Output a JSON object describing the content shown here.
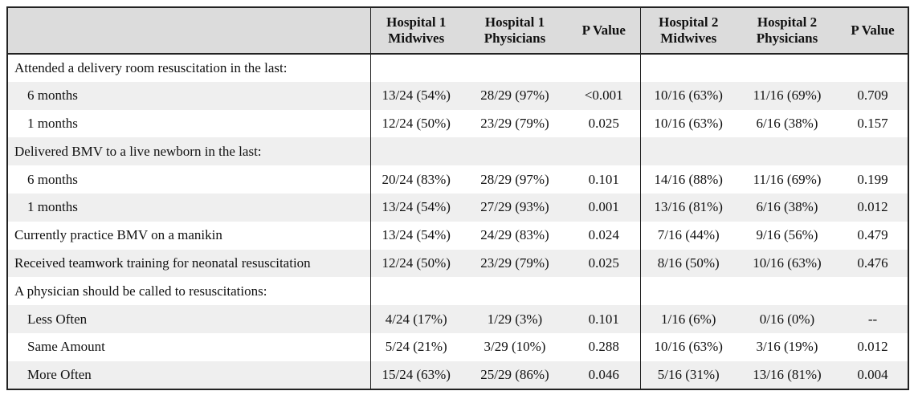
{
  "header": {
    "corner": "",
    "h1_line1": "Hospital 1",
    "h1_line2": "Midwives",
    "p1_line1": "Hospital 1",
    "p1_line2": "Physicians",
    "pv1": "P Value",
    "h2_line1": "Hospital 2",
    "h2_line2": "Midwives",
    "p2_line1": "Hospital 2",
    "p2_line2": "Physicians",
    "pv2": "P Value"
  },
  "rows": [
    {
      "label": "Attended a delivery room resuscitation in the last:",
      "indent": false,
      "cells": [
        "",
        "",
        "",
        "",
        "",
        ""
      ]
    },
    {
      "label": "6 months",
      "indent": true,
      "cells": [
        "13/24 (54%)",
        "28/29 (97%)",
        "<0.001",
        "10/16 (63%)",
        "11/16 (69%)",
        "0.709"
      ]
    },
    {
      "label": "1 months",
      "indent": true,
      "cells": [
        "12/24 (50%)",
        "23/29 (79%)",
        "0.025",
        "10/16 (63%)",
        "6/16 (38%)",
        "0.157"
      ]
    },
    {
      "label": "Delivered BMV to a live newborn in the last:",
      "indent": false,
      "cells": [
        "",
        "",
        "",
        "",
        "",
        ""
      ]
    },
    {
      "label": "6 months",
      "indent": true,
      "cells": [
        "20/24 (83%)",
        "28/29 (97%)",
        "0.101",
        "14/16 (88%)",
        "11/16 (69%)",
        "0.199"
      ]
    },
    {
      "label": "1 months",
      "indent": true,
      "cells": [
        "13/24 (54%)",
        "27/29 (93%)",
        "0.001",
        "13/16 (81%)",
        "6/16 (38%)",
        "0.012"
      ]
    },
    {
      "label": "Currently practice BMV on a manikin",
      "indent": false,
      "cells": [
        "13/24 (54%)",
        "24/29 (83%)",
        "0.024",
        "7/16 (44%)",
        "9/16 (56%)",
        "0.479"
      ]
    },
    {
      "label": "Received teamwork training for neonatal resuscitation",
      "indent": false,
      "cells": [
        "12/24 (50%)",
        "23/29 (79%)",
        "0.025",
        "8/16 (50%)",
        "10/16 (63%)",
        "0.476"
      ]
    },
    {
      "label": "A physician should be called to resuscitations:",
      "indent": false,
      "cells": [
        "",
        "",
        "",
        "",
        "",
        ""
      ]
    },
    {
      "label": "Less Often",
      "indent": true,
      "cells": [
        "4/24 (17%)",
        "1/29 (3%)",
        "0.101",
        "1/16 (6%)",
        "0/16 (0%)",
        "--"
      ]
    },
    {
      "label": "Same Amount",
      "indent": true,
      "cells": [
        "5/24 (21%)",
        "3/29 (10%)",
        "0.288",
        "10/16 (63%)",
        "3/16 (19%)",
        "0.012"
      ]
    },
    {
      "label": "More Often",
      "indent": true,
      "cells": [
        "15/24 (63%)",
        "25/29 (86%)",
        "0.046",
        "5/16 (31%)",
        "13/16 (81%)",
        "0.004"
      ]
    }
  ]
}
